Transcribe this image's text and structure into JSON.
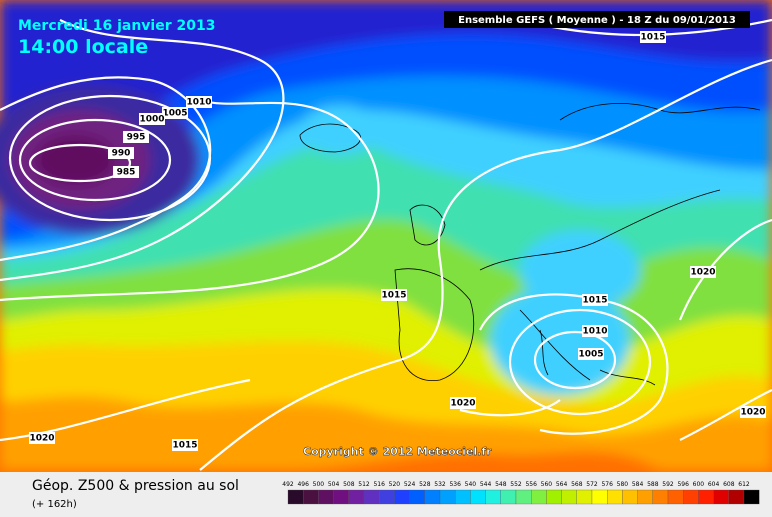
{
  "header": {
    "date": "Mercredi 16 janvier 2013",
    "time": "14:00 locale",
    "run": "Ensemble GEFS ( Moyenne )  -  18 Z du 09/01/2013"
  },
  "isobar_labels": [
    1015,
    1010,
    1005,
    1000,
    995,
    990,
    985,
    1015,
    1020,
    1015,
    1010,
    1005,
    1020,
    1020,
    1020,
    1015
  ],
  "copyright": "Copyright © 2012 Meteociel.fr",
  "footer": {
    "title": "Géop. Z500 & pression au sol",
    "lead": "(+ 162h)"
  },
  "colorbar": {
    "ticks": [
      492,
      496,
      500,
      504,
      508,
      512,
      516,
      520,
      524,
      528,
      532,
      536,
      540,
      544,
      548,
      552,
      556,
      560,
      564,
      568,
      572,
      576,
      580,
      584,
      588,
      592,
      596,
      600,
      604,
      608,
      612
    ],
    "colors": [
      "#2a0a2a",
      "#4a1040",
      "#601060",
      "#701080",
      "#7020a0",
      "#6030c0",
      "#4040e0",
      "#2040ff",
      "#0060ff",
      "#0080ff",
      "#00a0ff",
      "#00c0ff",
      "#00e0ff",
      "#20f0e0",
      "#40f0b0",
      "#60f080",
      "#80f040",
      "#a0f000",
      "#c0f000",
      "#e0f000",
      "#ffff00",
      "#ffe000",
      "#ffc000",
      "#ffa000",
      "#ff8000",
      "#ff6000",
      "#ff4000",
      "#ff2000",
      "#e00000",
      "#b00000",
      "#000000"
    ]
  }
}
